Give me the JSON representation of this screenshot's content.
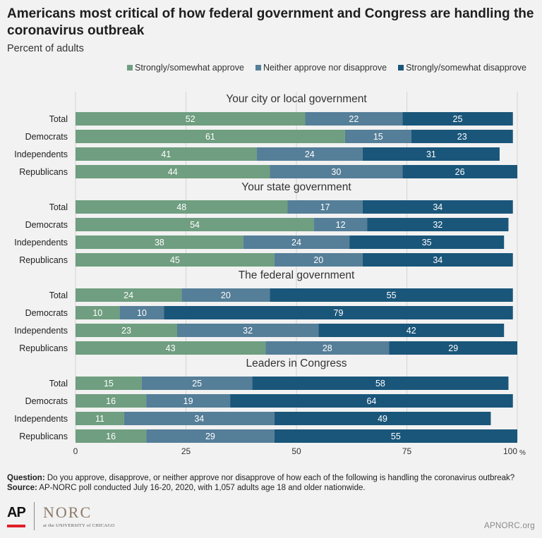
{
  "title": "Americans most critical of how federal government and Congress are handling the coronavirus outbreak",
  "subtitle": "Percent of adults",
  "legend": [
    {
      "label": "Strongly/somewhat approve",
      "color": "#6f9e80"
    },
    {
      "label": "Neither approve nor disapprove",
      "color": "#557e98"
    },
    {
      "label": "Strongly/somewhat disapprove",
      "color": "#1a567a"
    }
  ],
  "chart_data": {
    "type": "bar",
    "orientation": "horizontal",
    "stacked": true,
    "xlim": [
      0,
      100
    ],
    "x_ticks": [
      "0",
      "25",
      "50",
      "75",
      "100"
    ],
    "x_unit": "%",
    "series_names": [
      "Strongly/somewhat approve",
      "Neither approve nor disapprove",
      "Strongly/somewhat disapprove"
    ],
    "panels": [
      {
        "title": "Your city or local government",
        "categories": [
          "Total",
          "Democrats",
          "Independents",
          "Republicans"
        ],
        "values": [
          [
            52,
            22,
            25
          ],
          [
            61,
            15,
            23
          ],
          [
            41,
            24,
            31
          ],
          [
            44,
            30,
            26
          ]
        ]
      },
      {
        "title": "Your state government",
        "categories": [
          "Total",
          "Democrats",
          "Independents",
          "Republicans"
        ],
        "values": [
          [
            48,
            17,
            34
          ],
          [
            54,
            12,
            32
          ],
          [
            38,
            24,
            35
          ],
          [
            45,
            20,
            34
          ]
        ]
      },
      {
        "title": "The federal government",
        "categories": [
          "Total",
          "Democrats",
          "Independents",
          "Republicans"
        ],
        "values": [
          [
            24,
            20,
            55
          ],
          [
            10,
            10,
            79
          ],
          [
            23,
            32,
            42
          ],
          [
            43,
            28,
            29
          ]
        ]
      },
      {
        "title": "Leaders in Congress",
        "categories": [
          "Total",
          "Democrats",
          "Independents",
          "Republicans"
        ],
        "values": [
          [
            15,
            25,
            58
          ],
          [
            16,
            19,
            64
          ],
          [
            11,
            34,
            49
          ],
          [
            16,
            29,
            55
          ]
        ]
      }
    ]
  },
  "footer": {
    "question_label": "Question:",
    "question_text": " Do you approve, disapprove, or neither approve nor disapprove of how each of the following is handling the coronavirus outbreak?",
    "source_label": "Source:",
    "source_text": " AP-NORC poll conducted July 16-20, 2020, with 1,057 adults age 18 and older nationwide."
  },
  "logos": {
    "ap": "AP",
    "norc": "NORC",
    "norc_sub": "at the UNIVERSITY of CHICAGO"
  },
  "site": "APNORC.org"
}
